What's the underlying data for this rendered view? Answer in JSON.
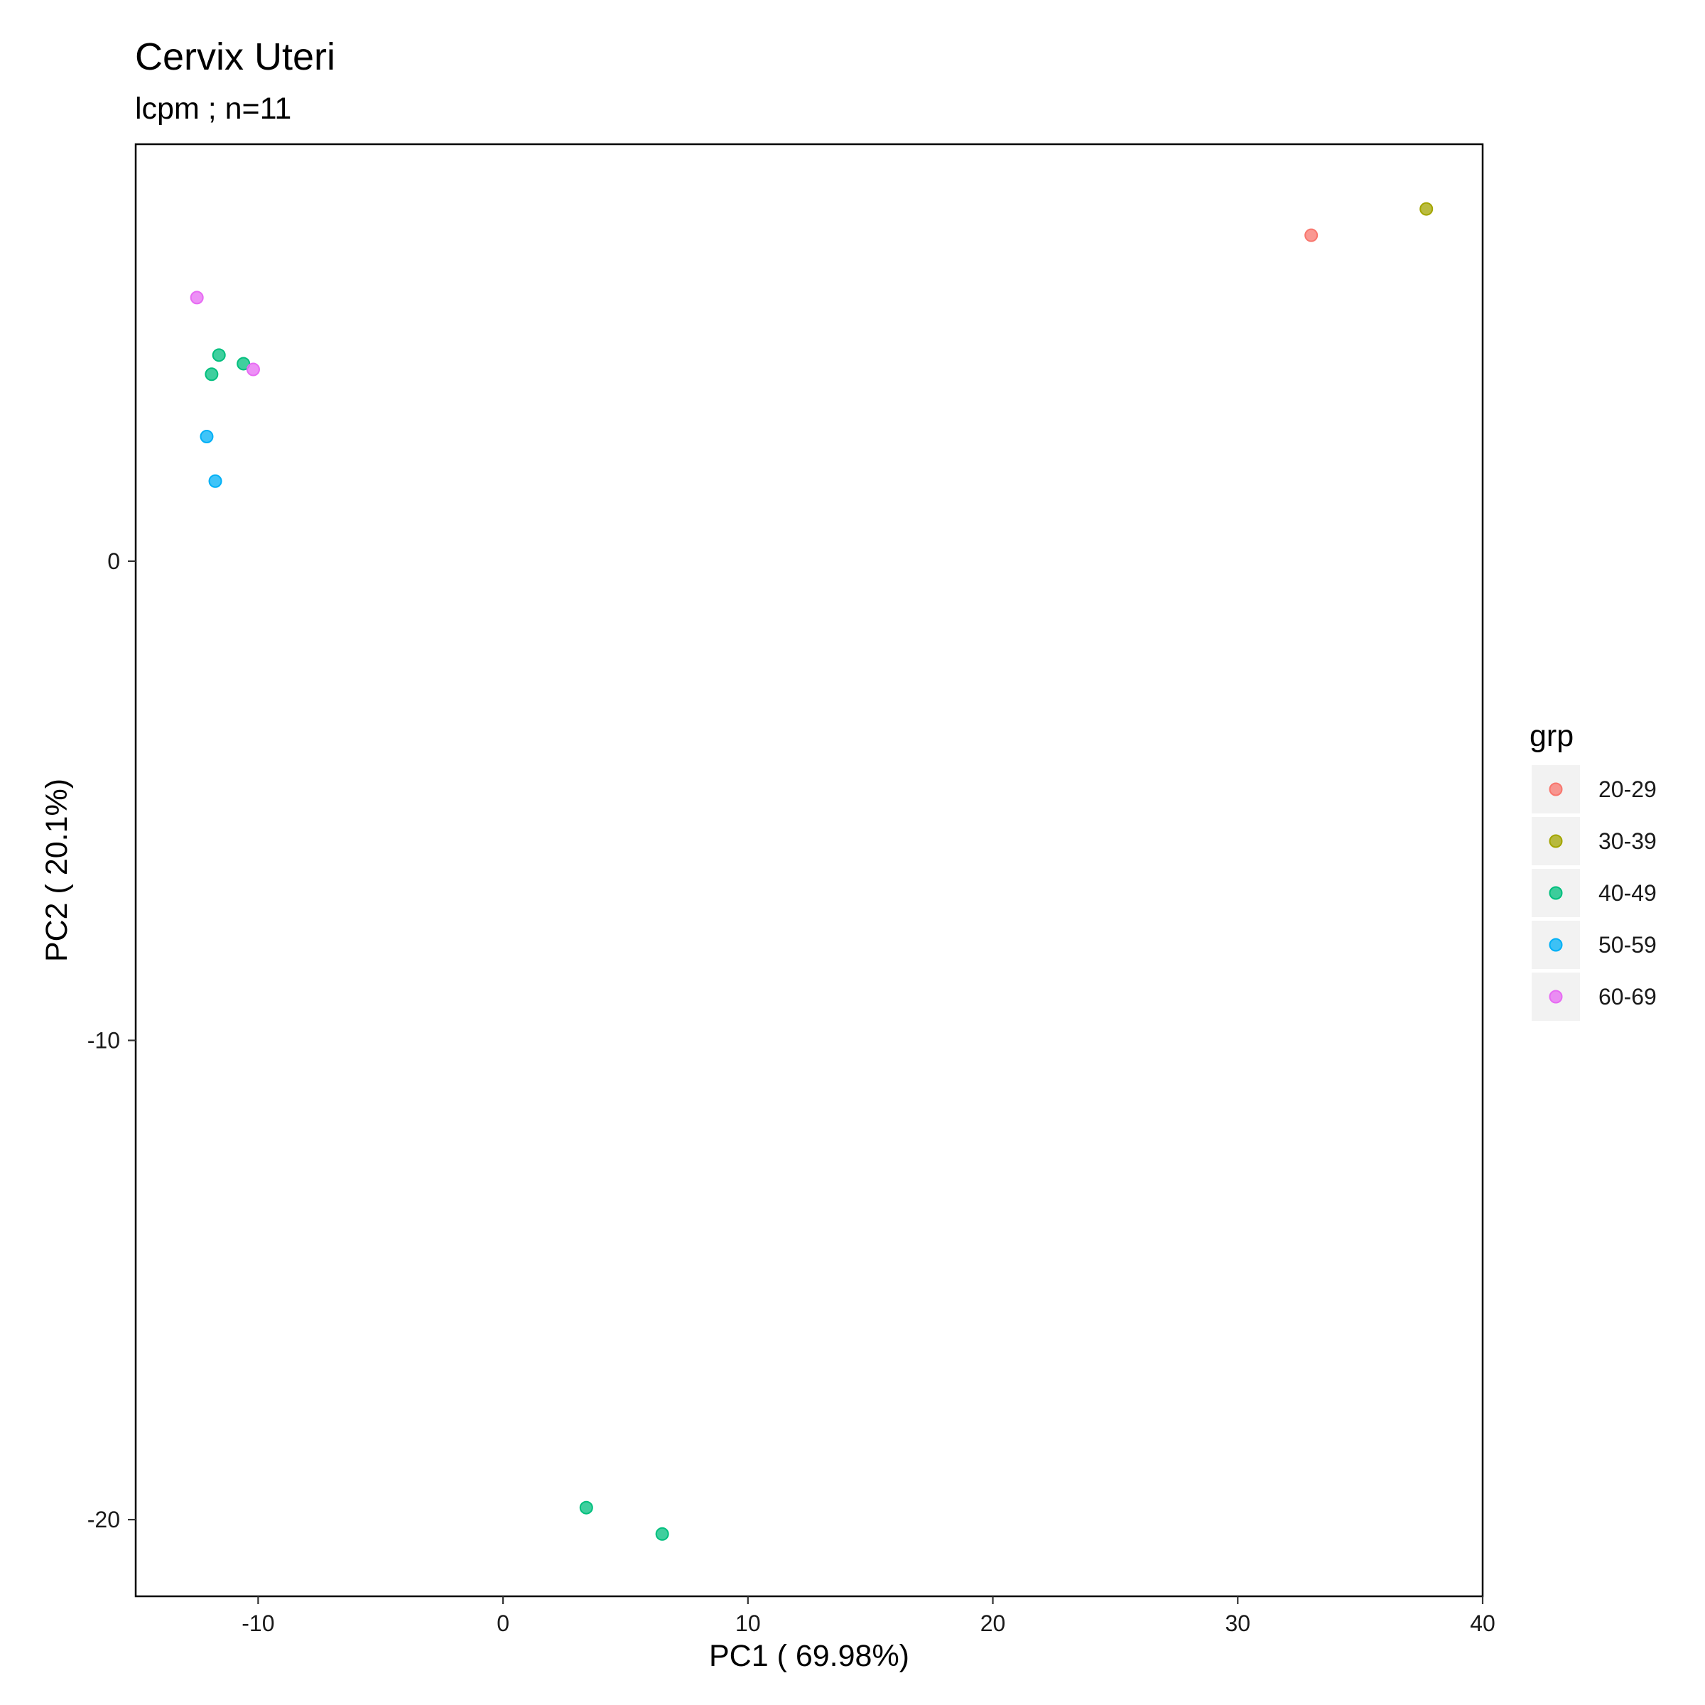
{
  "chart_data": {
    "type": "scatter",
    "title": "Cervix Uteri",
    "subtitle": "lcpm ; n=11",
    "xlabel": "PC1 ( 69.98%)",
    "ylabel": "PC2 ( 20.1%)",
    "xlim": [
      -15,
      40
    ],
    "ylim": [
      -21.6,
      8.7
    ],
    "x_ticks": [
      -10,
      0,
      10,
      20,
      30,
      40
    ],
    "y_ticks": [
      -20,
      -10,
      0
    ],
    "grid": false,
    "legend": {
      "title": "grp",
      "position": "right",
      "entries": [
        {
          "label": "20-29",
          "color": "#F8766D"
        },
        {
          "label": "30-39",
          "color": "#A3A500"
        },
        {
          "label": "40-49",
          "color": "#00BF7D"
        },
        {
          "label": "50-59",
          "color": "#00B0F6"
        },
        {
          "label": "60-69",
          "color": "#E76BF3"
        }
      ]
    },
    "series": [
      {
        "name": "20-29",
        "color": "#F8766D",
        "points": [
          {
            "x": 33.0,
            "y": 6.8
          }
        ]
      },
      {
        "name": "30-39",
        "color": "#A3A500",
        "points": [
          {
            "x": 37.7,
            "y": 7.35
          }
        ]
      },
      {
        "name": "40-49",
        "color": "#00BF7D",
        "points": [
          {
            "x": -11.6,
            "y": 4.3
          },
          {
            "x": -10.6,
            "y": 4.12
          },
          {
            "x": -11.9,
            "y": 3.9
          },
          {
            "x": 3.4,
            "y": -19.75
          },
          {
            "x": 6.5,
            "y": -20.3
          }
        ]
      },
      {
        "name": "50-59",
        "color": "#00B0F6",
        "points": [
          {
            "x": -12.1,
            "y": 2.6
          },
          {
            "x": -11.75,
            "y": 1.67
          }
        ]
      },
      {
        "name": "60-69",
        "color": "#E76BF3",
        "points": [
          {
            "x": -12.5,
            "y": 5.5
          },
          {
            "x": -10.2,
            "y": 4.0
          }
        ]
      }
    ]
  }
}
